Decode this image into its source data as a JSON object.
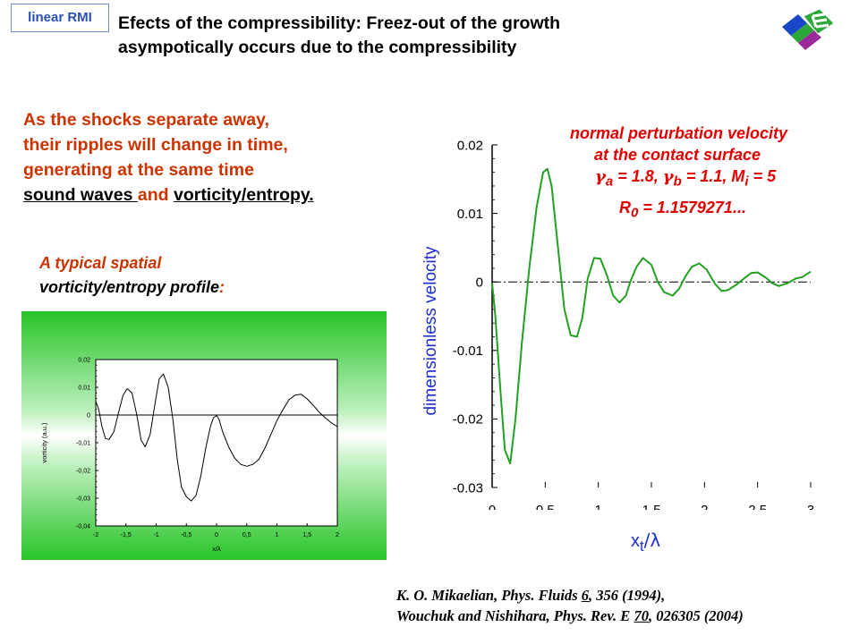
{
  "tag": "linear RMI",
  "title": {
    "line1": "Efects of the compressibility: Freez-out of the growth",
    "line2": "asympotically occurs due to the compressibility"
  },
  "intro": {
    "line1": "As the shocks separate away,",
    "line2": "their ripples will change in time,",
    "line3": "generating at the same time",
    "line4_a": "sound waves ",
    "line4_b": "and ",
    "line4_c": "vorticity/entropy."
  },
  "typical": {
    "line1": "A typical spatial",
    "line2_a": "vorticity/entropy profile",
    "line2_b": ":"
  },
  "annotation": {
    "line1": "normal perturbation velocity",
    "line2": "at the contact surface",
    "gamma_a_sub": "a",
    "gamma_a_val": " = 1.8, ",
    "gamma_b_sub": "b",
    "gamma_b_val": " = 1.1, M",
    "mach_sub": "i",
    "mach_val": " = 5",
    "r_label": "R",
    "r_sub": "0",
    "r_val": " = 1.1579271..."
  },
  "refs": {
    "line1_a": "K. O. Mikaelian, Phys. Fluids ",
    "line1_vol": "6",
    "line1_b": ", 356 (1994),",
    "line2_a": "Wouchuk and Nishihara, Phys. Rev. E ",
    "line2_vol": "70",
    "line2_b": ", 026305 (2004)"
  },
  "chart_data": [
    {
      "type": "line",
      "ylabel": "dimensionless velocity",
      "xlabel_main": "x",
      "xlabel_sub": "t",
      "xlabel_rest": "/λ",
      "xlim": [
        0,
        3
      ],
      "ylim": [
        -0.03,
        0.02
      ],
      "x_ticks": [
        "0",
        "0.5",
        "1",
        "1.5",
        "2",
        "2.5",
        "3"
      ],
      "y_ticks": [
        "0.02",
        "0.01",
        "0",
        "-0.01",
        "-0.02",
        "-0.03"
      ],
      "grid": false,
      "color": "#22a022",
      "reference_line": 0,
      "series": [
        {
          "x": [
            0,
            0.03,
            0.08,
            0.12,
            0.17,
            0.22,
            0.28,
            0.35,
            0.42,
            0.48,
            0.52,
            0.56,
            0.62,
            0.68,
            0.74,
            0.8,
            0.85,
            0.9,
            0.96,
            1.02,
            1.08,
            1.14,
            1.2,
            1.26,
            1.3,
            1.36,
            1.42,
            1.5,
            1.56,
            1.62,
            1.7,
            1.76,
            1.82,
            1.88,
            1.95,
            2.02,
            2.1,
            2.16,
            2.22,
            2.3,
            2.38,
            2.44,
            2.5,
            2.58,
            2.64,
            2.7,
            2.78,
            2.86,
            2.92,
            3.0
          ],
          "y": [
            -0.0002,
            -0.005,
            -0.0163,
            -0.0245,
            -0.0265,
            -0.02,
            -0.009,
            0.002,
            0.011,
            0.016,
            0.0165,
            0.014,
            0.005,
            -0.004,
            -0.0078,
            -0.008,
            -0.0052,
            0.0005,
            0.0035,
            0.0034,
            0.001,
            -0.002,
            -0.003,
            -0.002,
            0.0,
            0.0022,
            0.0035,
            0.0025,
            0.0,
            -0.0015,
            -0.002,
            -0.001,
            0.0008,
            0.0022,
            0.0027,
            0.0018,
            -0.0003,
            -0.0013,
            -0.0012,
            -0.0004,
            0.0006,
            0.0013,
            0.0014,
            0.0006,
            -0.0002,
            -0.0006,
            -0.0002,
            0.0005,
            0.0007,
            0.0015
          ]
        }
      ]
    },
    {
      "type": "line",
      "ylabel": "vorticity (a.u.)",
      "xlabel": "x/λ",
      "xlim": [
        -2,
        2
      ],
      "ylim": [
        -0.04,
        0.02
      ],
      "x_ticks": [
        "-2",
        "-1,5",
        "-1",
        "-0,5",
        "0",
        "0,5",
        "1",
        "1,5",
        "2"
      ],
      "y_ticks": [
        "0,02",
        "0,01",
        "0",
        "-0,01",
        "-0,02",
        "-0,03",
        "-0,04"
      ],
      "grid": false,
      "color": "#000000",
      "reference_line": 0,
      "series": [
        {
          "x": [
            -2.0,
            -1.95,
            -1.9,
            -1.84,
            -1.78,
            -1.7,
            -1.62,
            -1.55,
            -1.48,
            -1.4,
            -1.32,
            -1.25,
            -1.18,
            -1.1,
            -1.02,
            -0.95,
            -0.88,
            -0.8,
            -0.72,
            -0.65,
            -0.58,
            -0.5,
            -0.42,
            -0.34,
            -0.26,
            -0.18,
            -0.1,
            -0.05,
            0.0,
            0.04,
            0.1,
            0.2,
            0.3,
            0.4,
            0.5,
            0.6,
            0.7,
            0.8,
            0.9,
            1.0,
            1.1,
            1.2,
            1.3,
            1.4,
            1.5,
            1.6,
            1.7,
            1.8,
            1.9,
            2.0
          ],
          "y": [
            0.005,
            0.002,
            -0.004,
            -0.0085,
            -0.0088,
            -0.006,
            0.001,
            0.007,
            0.0095,
            0.008,
            0.0,
            -0.009,
            -0.0115,
            -0.007,
            0.004,
            0.013,
            0.0148,
            0.01,
            -0.002,
            -0.016,
            -0.026,
            -0.0295,
            -0.031,
            -0.029,
            -0.022,
            -0.012,
            -0.004,
            -0.001,
            -0.0002,
            -0.0015,
            -0.006,
            -0.0115,
            -0.0155,
            -0.0178,
            -0.0185,
            -0.0178,
            -0.016,
            -0.012,
            -0.007,
            -0.002,
            0.002,
            0.0055,
            0.0072,
            0.0075,
            0.0058,
            0.0035,
            0.001,
            -0.001,
            -0.0028,
            -0.0042
          ]
        }
      ]
    }
  ]
}
